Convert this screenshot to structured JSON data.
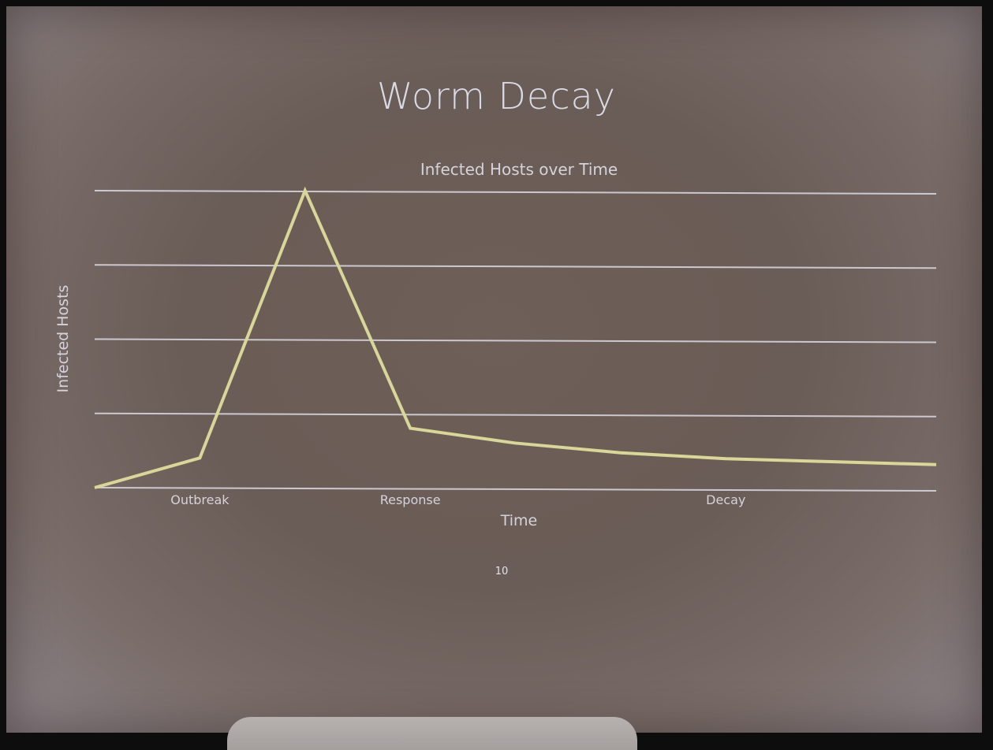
{
  "slide": {
    "title": "Worm Decay",
    "page_number": "10"
  },
  "colors": {
    "line": "#d8d699",
    "grid": "#d6d4de",
    "text": "#d4d3dc"
  },
  "chart_data": {
    "type": "line",
    "title": "Infected Hosts over Time",
    "xlabel": "Time",
    "ylabel": "Infected Hosts",
    "ylim": [
      0,
      4
    ],
    "grid": true,
    "tick_labels": [
      {
        "label": "Outbreak",
        "x": 1
      },
      {
        "label": "Response",
        "x": 3
      },
      {
        "label": "Decay",
        "x": 6
      }
    ],
    "x": [
      0,
      1,
      2,
      3,
      4,
      5,
      6,
      7,
      8
    ],
    "series": [
      {
        "values": [
          0,
          0.4,
          4.0,
          0.8,
          0.6,
          0.47,
          0.39,
          0.35,
          0.31
        ]
      }
    ]
  }
}
